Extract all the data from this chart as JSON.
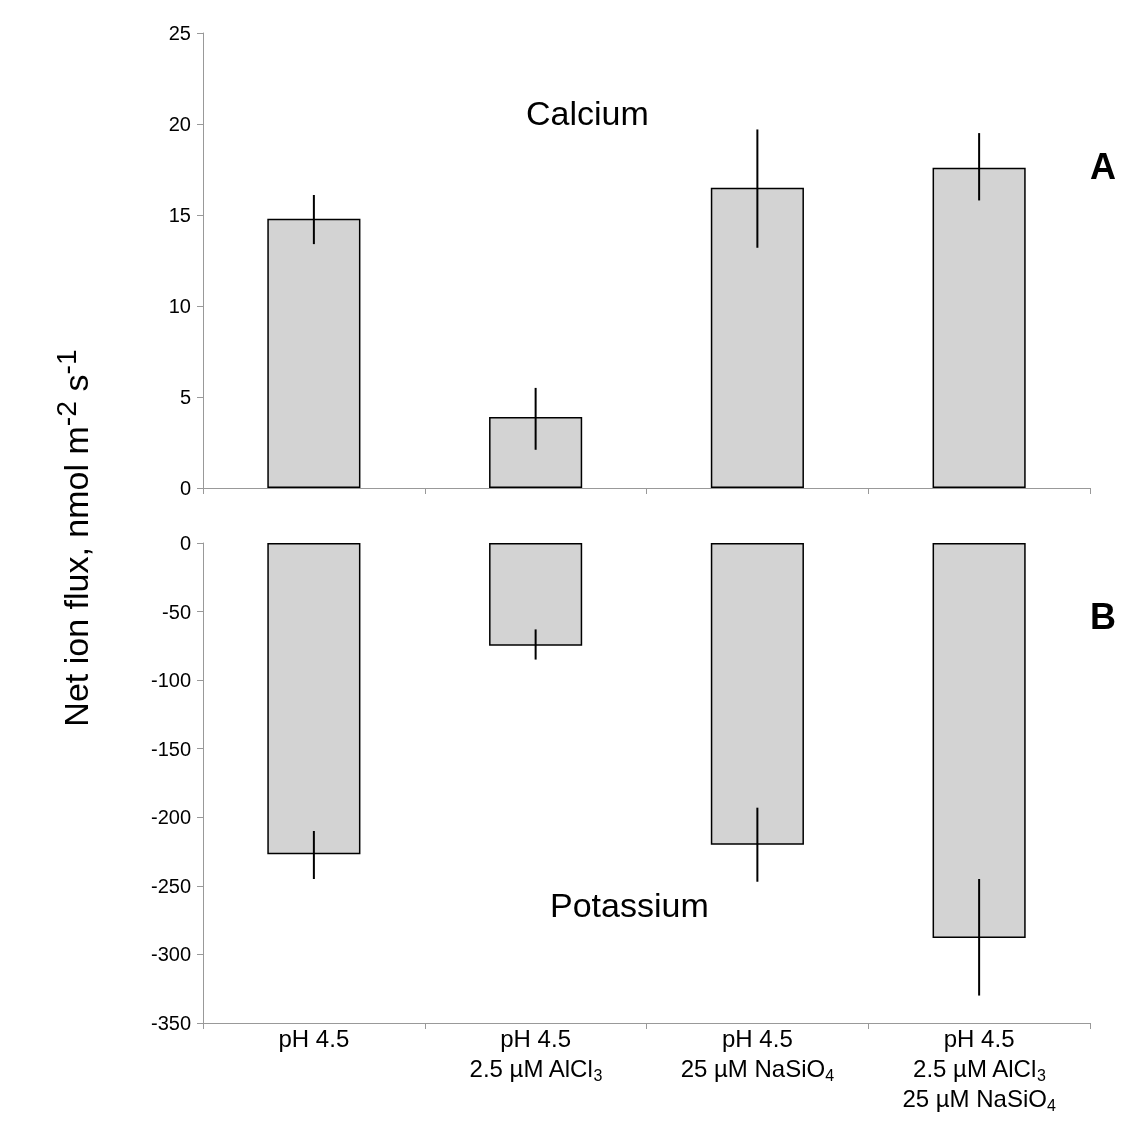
{
  "chart_data": [
    {
      "type": "bar",
      "ylabel": "Net ion flux, nmol m$^{-2}$ s$^{-1}$",
      "categories": [
        null,
        null,
        null,
        null
      ],
      "values": [
        14.8,
        3.9,
        16.5,
        17.6
      ],
      "errors": [
        [
          13.4,
          16.1
        ],
        [
          2.1,
          5.5
        ],
        [
          13.2,
          19.7
        ],
        [
          15.8,
          19.5
        ]
      ],
      "color": "#d3d3d3",
      "ylim": [
        0,
        25
      ],
      "yticks": [
        0,
        5,
        10,
        15,
        20,
        25
      ],
      "grid": false,
      "tick_labels": "y",
      "annotations": [
        "Calcium",
        "A"
      ]
    },
    {
      "type": "bar",
      "categories": [
        "pH 4.5",
        "pH 4.5\n2.5 µM AlCl$_{3}$",
        "pH 4.5\n25 µM NaSiO$_{4}$",
        "pH 4.5\n2.5 µM AlCl$_{3}$\n25 µM NaSiO$_{4}$"
      ],
      "values": [
        -227,
        -75,
        -220,
        -288
      ],
      "errors": [
        [
          -245,
          -210
        ],
        [
          -85,
          -63
        ],
        [
          -247,
          -193
        ],
        [
          -330,
          -245
        ]
      ],
      "color": "#d3d3d3",
      "ylim": [
        -350,
        0
      ],
      "yticks": [
        -350,
        -300,
        -250,
        -200,
        -150,
        -100,
        -50,
        0
      ],
      "grid": false,
      "annotations": [
        "Potassium",
        "B"
      ]
    }
  ]
}
